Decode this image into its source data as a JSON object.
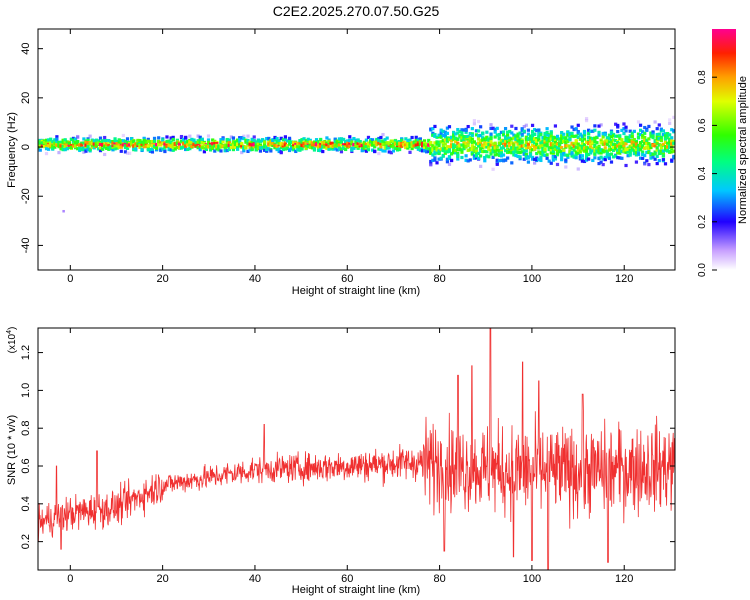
{
  "page_title": "C2E2.2025.270.07.50.G25",
  "chart_data": [
    {
      "type": "heatmap",
      "title": "C2E2.2025.270.07.50.G25",
      "xlabel": "Height of straight line (km)",
      "ylabel": "Frequency (Hz)",
      "xlim": [
        -7,
        131
      ],
      "ylim": [
        -50,
        48
      ],
      "x_ticks": [
        0,
        20,
        40,
        60,
        80,
        100,
        120
      ],
      "x_tick_labels": [
        "0",
        "20",
        "40",
        "60",
        "80",
        "100",
        "120"
      ],
      "y_ticks": [
        -40,
        -20,
        0,
        20,
        40
      ],
      "y_tick_labels": [
        "-40",
        "-20",
        "0",
        "20",
        "40"
      ],
      "colorbar": {
        "label": "Normalized spectral amplitude",
        "range": [
          0,
          1
        ],
        "ticks": [
          0.0,
          0.2,
          0.4,
          0.6,
          0.8
        ],
        "tick_labels": [
          "0.0",
          "0.2",
          "0.4",
          "0.6",
          "0.8"
        ]
      },
      "band": {
        "center_freq_hz": 1,
        "narrow_halfwidth_hz": 3,
        "narrow_range_km": [
          -7,
          75
        ],
        "wide_halfwidth_hz": 8,
        "wide_range_km": [
          78,
          131
        ]
      },
      "isolated_points": [
        {
          "x": -1.5,
          "y": -26,
          "amplitude": 0.05
        }
      ]
    },
    {
      "type": "line",
      "xlabel": "Height of straight line (km)",
      "ylabel": "SNR (10 * v/v)",
      "y_scale_label": "(x10",
      "y_scale_exponent": "4",
      "xlim": [
        -7,
        131
      ],
      "ylim": [
        0.05,
        1.33
      ],
      "x_ticks": [
        0,
        20,
        40,
        60,
        80,
        100,
        120
      ],
      "x_tick_labels": [
        "0",
        "20",
        "40",
        "60",
        "80",
        "100",
        "120"
      ],
      "y_ticks": [
        0.2,
        0.4,
        0.6,
        0.8,
        1.0,
        1.2
      ],
      "y_tick_labels": [
        "0.2",
        "0.4",
        "0.6",
        "0.8",
        "1.0",
        "1.2"
      ],
      "line_color": "#f03030",
      "trend": [
        {
          "x": -7,
          "y": 0.3
        },
        {
          "x": 0,
          "y": 0.35
        },
        {
          "x": 10,
          "y": 0.38
        },
        {
          "x": 20,
          "y": 0.5
        },
        {
          "x": 40,
          "y": 0.58
        },
        {
          "x": 60,
          "y": 0.6
        },
        {
          "x": 75,
          "y": 0.62
        },
        {
          "x": 90,
          "y": 0.58
        },
        {
          "x": 110,
          "y": 0.57
        },
        {
          "x": 131,
          "y": 0.6
        }
      ],
      "peaks": [
        {
          "x": -3,
          "y": 0.6
        },
        {
          "x": 5.8,
          "y": 0.68
        },
        {
          "x": 42,
          "y": 0.82
        },
        {
          "x": 84,
          "y": 1.08
        },
        {
          "x": 87,
          "y": 1.13
        },
        {
          "x": 91,
          "y": 1.33
        },
        {
          "x": 98,
          "y": 1.15
        },
        {
          "x": 101.5,
          "y": 1.05
        },
        {
          "x": 111,
          "y": 0.98
        }
      ],
      "troughs": [
        {
          "x": -7,
          "y": 0.2
        },
        {
          "x": -2,
          "y": 0.16
        },
        {
          "x": 81,
          "y": 0.15
        },
        {
          "x": 96,
          "y": 0.12
        },
        {
          "x": 100,
          "y": 0.1
        },
        {
          "x": 103.5,
          "y": 0.03
        },
        {
          "x": 116.5,
          "y": 0.09
        }
      ]
    }
  ]
}
